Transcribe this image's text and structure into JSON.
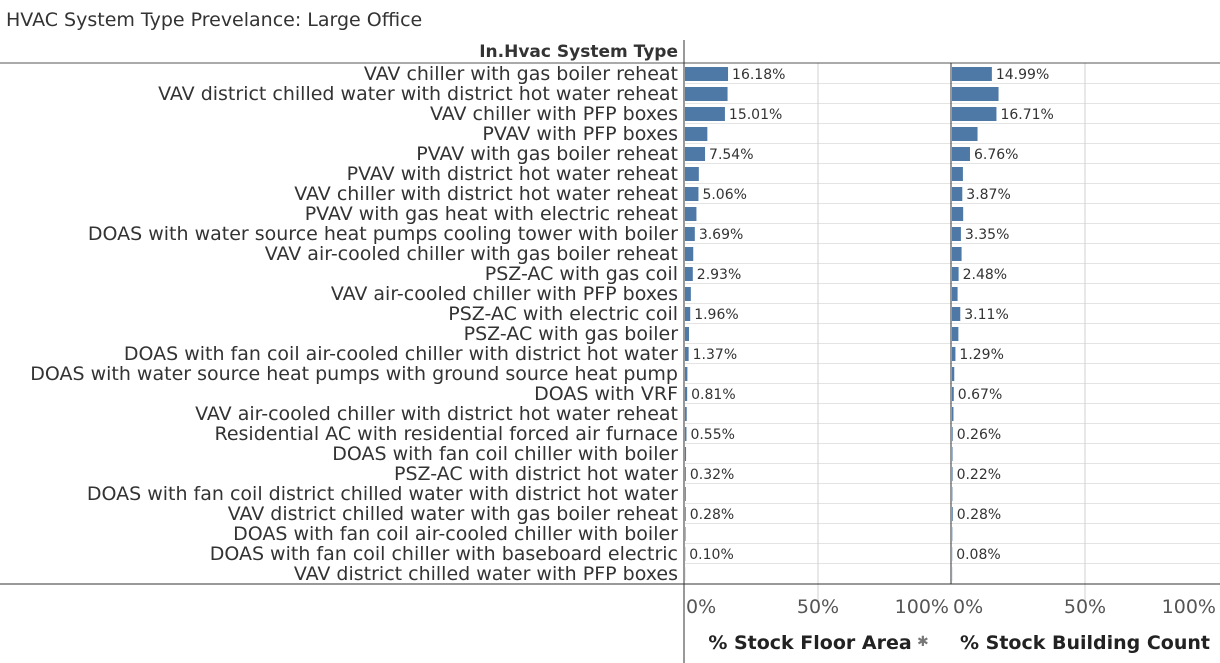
{
  "title": "HVAC System Type Prevelance: Large Office",
  "row_header": "In.Hvac System Type",
  "chart_data": {
    "type": "bar",
    "orientation": "horizontal",
    "categories": [
      "VAV chiller with gas boiler reheat",
      "VAV district chilled water with district hot water reheat",
      "VAV chiller with PFP boxes",
      "PVAV with PFP boxes",
      "PVAV with gas boiler reheat",
      "PVAV with district hot water reheat",
      "VAV chiller with district hot water reheat",
      "PVAV with gas heat with electric reheat",
      "DOAS with water source heat pumps cooling tower with boiler",
      "VAV air-cooled chiller with gas boiler reheat",
      "PSZ-AC with gas coil",
      "VAV air-cooled chiller with PFP boxes",
      "PSZ-AC with electric coil",
      "PSZ-AC with gas boiler",
      "DOAS with fan coil air-cooled chiller with district hot water",
      "DOAS with water source heat pumps with ground source heat pump",
      "DOAS with VRF",
      "VAV air-cooled chiller with district hot water reheat",
      "Residential AC with residential forced air furnace",
      "DOAS with fan coil chiller with boiler",
      "PSZ-AC with district hot water",
      "DOAS with fan coil district chilled water with district hot water",
      "VAV district chilled water with gas boiler reheat",
      "DOAS with fan coil air-cooled chiller with boiler",
      "DOAS with fan coil chiller with baseboard electric",
      "VAV district chilled water with PFP boxes"
    ],
    "series": [
      {
        "name": "% Stock Floor Area",
        "values": [
          16.18,
          16.0,
          15.01,
          8.4,
          7.54,
          5.2,
          5.06,
          4.3,
          3.69,
          3.1,
          2.93,
          2.2,
          1.96,
          1.5,
          1.37,
          0.9,
          0.81,
          0.65,
          0.55,
          0.4,
          0.32,
          0.3,
          0.28,
          0.2,
          0.1,
          0.05
        ],
        "labels": [
          "16.18%",
          "",
          "15.01%",
          "",
          "7.54%",
          "",
          "5.06%",
          "",
          "3.69%",
          "",
          "2.93%",
          "",
          "1.96%",
          "",
          "1.37%",
          "",
          "0.81%",
          "",
          "0.55%",
          "",
          "0.32%",
          "",
          "0.28%",
          "",
          "0.10%",
          ""
        ]
      },
      {
        "name": "% Stock Building Count",
        "values": [
          14.99,
          17.5,
          16.71,
          9.6,
          6.76,
          4.1,
          3.87,
          4.2,
          3.35,
          3.6,
          2.48,
          2.1,
          3.11,
          2.4,
          1.29,
          0.85,
          0.67,
          0.55,
          0.26,
          0.2,
          0.22,
          0.15,
          0.28,
          0.12,
          0.08,
          0.05
        ],
        "labels": [
          "14.99%",
          "",
          "16.71%",
          "",
          "6.76%",
          "",
          "3.87%",
          "",
          "3.35%",
          "",
          "2.48%",
          "",
          "3.11%",
          "",
          "1.29%",
          "",
          "0.67%",
          "",
          "0.26%",
          "",
          "0.22%",
          "",
          "0.28%",
          "",
          "0.08%",
          ""
        ]
      }
    ],
    "xlim": [
      0,
      100
    ],
    "xticks": [
      "0%",
      "50%",
      "100%"
    ],
    "grid": true,
    "bar_color": "#4e79a7"
  }
}
